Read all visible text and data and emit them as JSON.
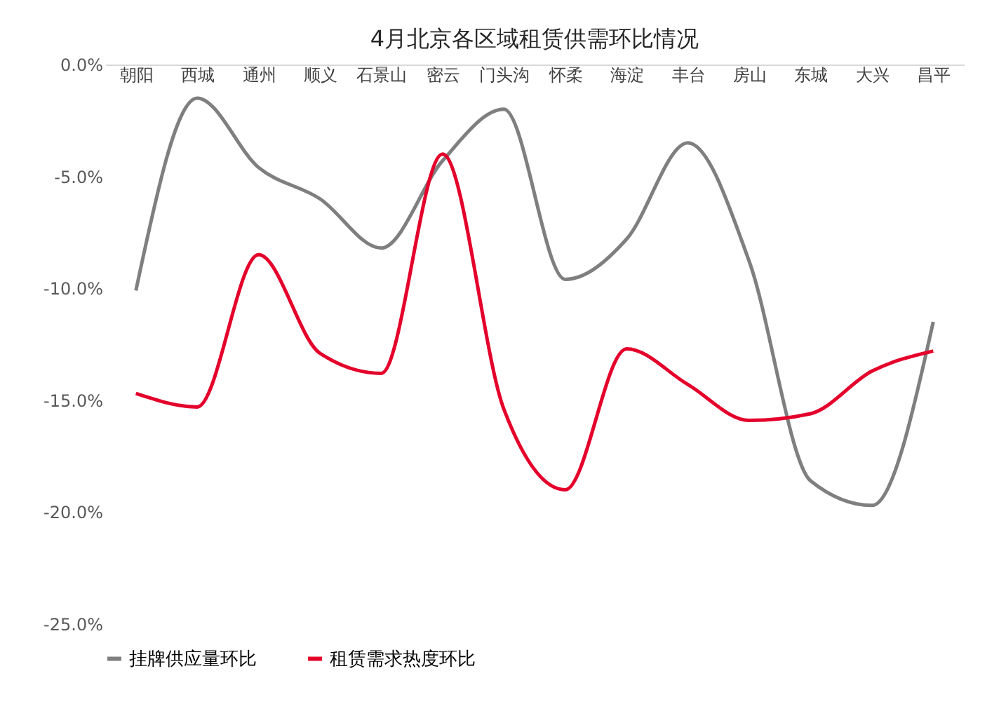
{
  "chart_data": {
    "type": "line",
    "title": "4月北京各区域租赁供需环比情况",
    "categories": [
      "朝阳",
      "西城",
      "通州",
      "顺义",
      "石景山",
      "密云",
      "门头沟",
      "怀柔",
      "海淀",
      "丰台",
      "房山",
      "东城",
      "大兴",
      "昌平"
    ],
    "series": [
      {
        "name": "挂牌供应量环比",
        "color": "#7f7f7f",
        "values": [
          -10.1,
          -1.5,
          -4.6,
          -6.0,
          -8.2,
          -4.3,
          -2.0,
          -9.6,
          -7.8,
          -3.5,
          -8.8,
          -18.6,
          -19.7,
          -11.5
        ]
      },
      {
        "name": "租赁需求热度环比",
        "color": "#e4002b",
        "values": [
          -14.7,
          -15.3,
          -8.5,
          -12.9,
          -13.8,
          -4.0,
          -15.4,
          -19.0,
          -12.7,
          -14.3,
          -15.9,
          -15.6,
          -13.7,
          -12.8
        ]
      }
    ],
    "ylim": [
      -25,
      0
    ],
    "yticks": [
      {
        "value": 0,
        "label": "0.0%"
      },
      {
        "value": -5,
        "label": "-5.0%"
      },
      {
        "value": -10,
        "label": "-10.0%"
      },
      {
        "value": -15,
        "label": "-15.0%"
      },
      {
        "value": -20,
        "label": "-20.0%"
      },
      {
        "value": -25,
        "label": "-25.0%"
      }
    ],
    "grid": false,
    "legend": "bottom",
    "marker": "none",
    "line_style": "solid"
  }
}
